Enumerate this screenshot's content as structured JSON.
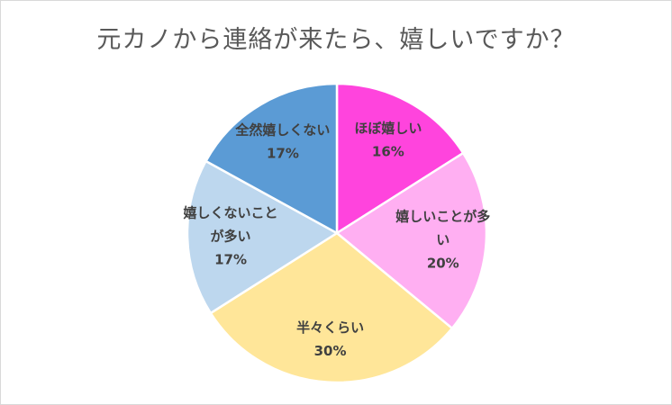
{
  "chart_data": {
    "type": "pie",
    "title": "元カノから連絡が来たら、嬉しいですか？",
    "slices": [
      {
        "label_lines": [
          "ほぼ嬉しい"
        ],
        "value": 16,
        "value_label": "16%",
        "color": "#FF44DD"
      },
      {
        "label_lines": [
          "嬉しいことが多",
          "い"
        ],
        "value": 20,
        "value_label": "20%",
        "color": "#FFAFF2"
      },
      {
        "label_lines": [
          "半々くらい"
        ],
        "value": 30,
        "value_label": "30%",
        "color": "#FFE699"
      },
      {
        "label_lines": [
          "嬉しくないこと",
          "が多い"
        ],
        "value": 17,
        "value_label": "17%",
        "color": "#BDD7EE"
      },
      {
        "label_lines": [
          "全然嬉しくない"
        ],
        "value": 17,
        "value_label": "17%",
        "color": "#5B9BD5"
      }
    ],
    "start_angle_deg": 0,
    "direction": "clockwise",
    "legend": "none"
  }
}
